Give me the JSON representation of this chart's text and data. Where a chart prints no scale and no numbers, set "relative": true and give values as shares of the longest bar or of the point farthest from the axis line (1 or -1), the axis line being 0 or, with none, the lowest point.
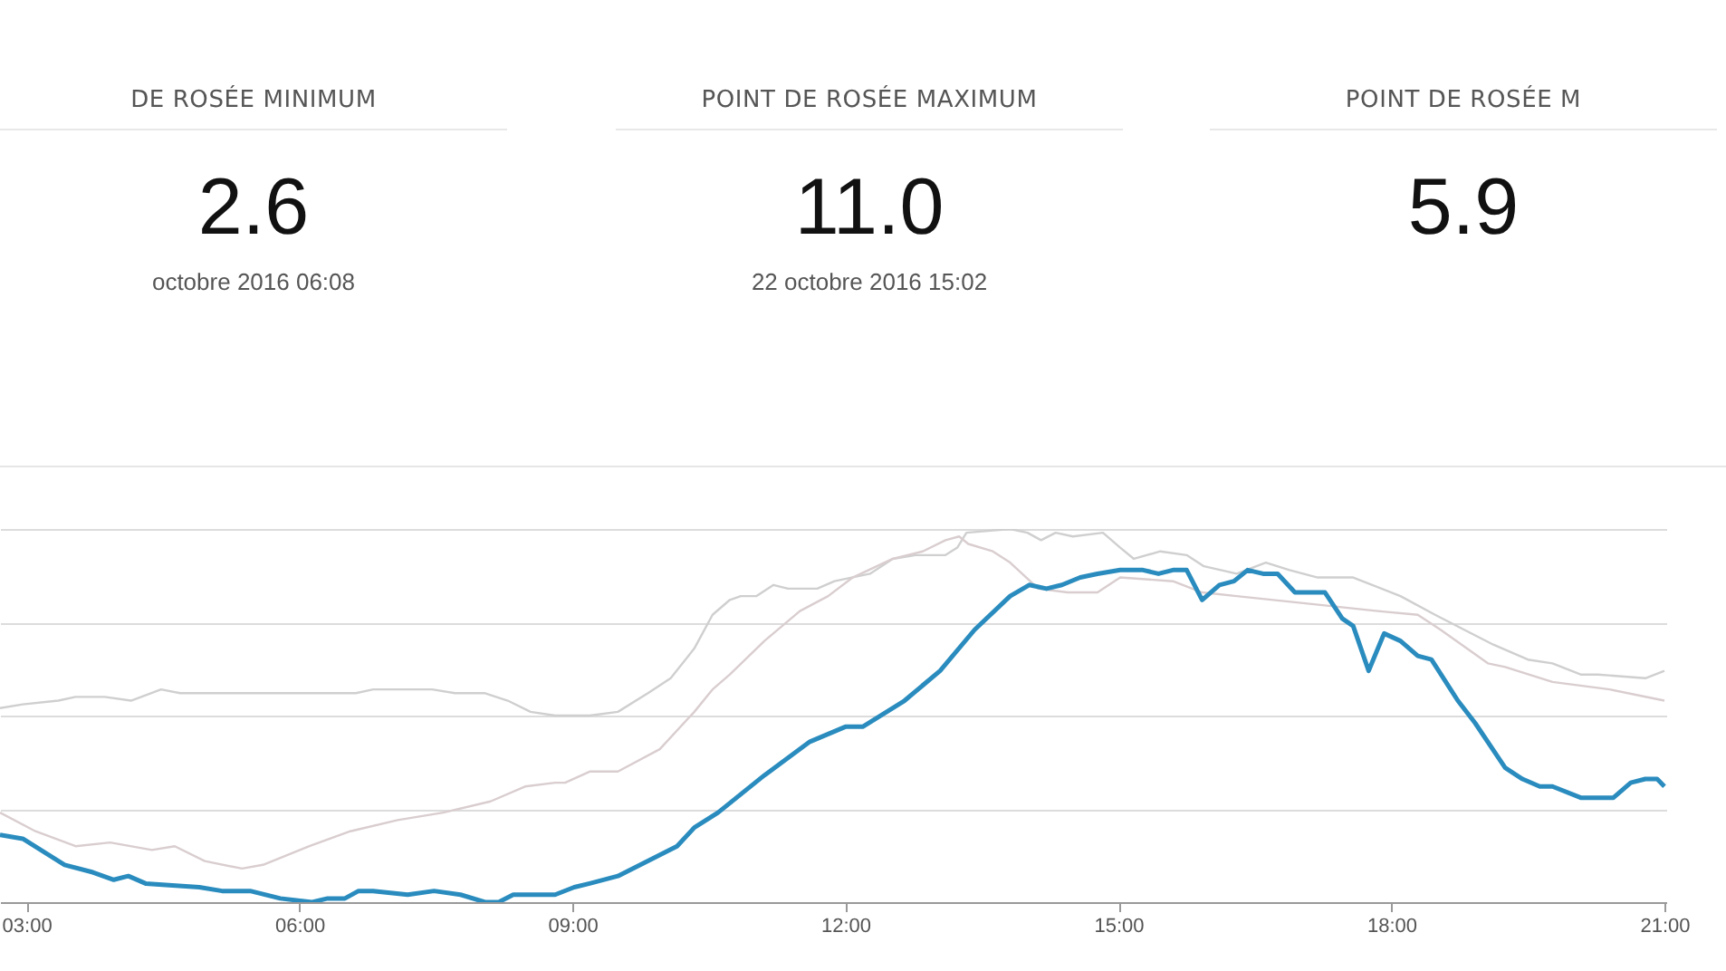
{
  "chart_data": [
    {
      "type": "other",
      "title": "DE ROSÉE MINIMUM",
      "annotations": [
        "2.6",
        "octobre 2016 06:08"
      ]
    },
    {
      "type": "other",
      "title": "POINT DE ROSÉE MAXIMUM",
      "annotations": [
        "11.0",
        "22 octobre 2016 15:02"
      ]
    },
    {
      "type": "other",
      "title": "POINT DE ROSÉE M",
      "annotations": [
        "5.9"
      ]
    },
    {
      "type": "line",
      "relative": true,
      "grid": "y",
      "line_style": "solid",
      "xlim": [
        2.71,
        21.02
      ],
      "xticks": [
        {
          "value": 3,
          "label": "03:00"
        },
        {
          "value": 6,
          "label": "06:00"
        },
        {
          "value": 9,
          "label": "09:00"
        },
        {
          "value": 12,
          "label": "12:00"
        },
        {
          "value": 15,
          "label": "15:00"
        },
        {
          "value": 18,
          "label": "18:00"
        },
        {
          "value": 21,
          "label": "21:00"
        }
      ],
      "series": [
        {
          "color": "#cfcfcf",
          "x": [
            2.71,
            2.96,
            3.35,
            3.54,
            3.86,
            4.15,
            4.48,
            4.69,
            6.62,
            6.81,
            7.46,
            7.71,
            8.04,
            8.29,
            8.54,
            8.81,
            9.19,
            9.5,
            9.83,
            10.08,
            10.34,
            10.54,
            10.73,
            10.85,
            11.02,
            11.21,
            11.37,
            11.69,
            11.88,
            12.27,
            12.52,
            12.77,
            13.1,
            13.23,
            13.33,
            13.81,
            14.0,
            14.15,
            14.31,
            14.5,
            14.83,
            15.02,
            15.17,
            15.46,
            15.75,
            15.94,
            16.3,
            16.62,
            16.88,
            17.19,
            17.58,
            18.1,
            18.48,
            19.12,
            19.5,
            19.77,
            20.08,
            20.27,
            20.79,
            21.0
          ],
          "values": [
            0.52,
            0.53,
            0.54,
            0.55,
            0.55,
            0.54,
            0.57,
            0.56,
            0.56,
            0.57,
            0.57,
            0.56,
            0.56,
            0.54,
            0.51,
            0.5,
            0.5,
            0.51,
            0.56,
            0.6,
            0.68,
            0.77,
            0.81,
            0.82,
            0.82,
            0.85,
            0.84,
            0.84,
            0.86,
            0.88,
            0.92,
            0.93,
            0.93,
            0.95,
            0.99,
            1.0,
            0.99,
            0.97,
            0.99,
            0.98,
            0.99,
            0.95,
            0.92,
            0.94,
            0.93,
            0.9,
            0.88,
            0.91,
            0.89,
            0.87,
            0.87,
            0.82,
            0.77,
            0.69,
            0.65,
            0.64,
            0.61,
            0.61,
            0.6,
            0.62
          ]
        },
        {
          "color": "#d9cdcf",
          "x": [
            2.71,
            3.1,
            3.54,
            3.92,
            4.38,
            4.63,
            4.96,
            5.37,
            5.6,
            6.11,
            6.56,
            7.08,
            7.58,
            8.1,
            8.48,
            8.81,
            8.92,
            9.19,
            9.5,
            9.96,
            10.34,
            10.54,
            10.73,
            11.11,
            11.5,
            11.81,
            12.08,
            12.52,
            12.85,
            13.1,
            13.25,
            13.35,
            13.62,
            13.81,
            14.12,
            14.44,
            14.77,
            15.02,
            15.6,
            15.92,
            16.3,
            17.08,
            17.85,
            18.29,
            18.54,
            19.06,
            19.25,
            19.77,
            20.4,
            21.0
          ],
          "values": [
            0.24,
            0.19,
            0.15,
            0.16,
            0.14,
            0.15,
            0.11,
            0.09,
            0.1,
            0.15,
            0.19,
            0.22,
            0.24,
            0.27,
            0.31,
            0.32,
            0.32,
            0.35,
            0.35,
            0.41,
            0.51,
            0.57,
            0.61,
            0.7,
            0.78,
            0.82,
            0.87,
            0.92,
            0.94,
            0.97,
            0.98,
            0.96,
            0.94,
            0.91,
            0.84,
            0.83,
            0.83,
            0.87,
            0.86,
            0.83,
            0.82,
            0.8,
            0.78,
            0.77,
            0.73,
            0.64,
            0.63,
            0.59,
            0.57,
            0.54
          ]
        },
        {
          "color": "#2a8cbe",
          "x": [
            2.71,
            2.96,
            3.42,
            3.73,
            3.96,
            4.12,
            4.31,
            4.9,
            5.15,
            5.46,
            5.79,
            6.14,
            6.31,
            6.5,
            6.65,
            6.81,
            7.19,
            7.48,
            7.77,
            8.04,
            8.19,
            8.35,
            8.81,
            9.02,
            9.19,
            9.5,
            10.15,
            10.34,
            10.6,
            11.11,
            11.61,
            12.0,
            12.19,
            12.65,
            13.04,
            13.42,
            13.81,
            14.02,
            14.21,
            14.38,
            14.58,
            14.77,
            15.02,
            15.27,
            15.44,
            15.6,
            15.75,
            15.92,
            16.11,
            16.27,
            16.42,
            16.59,
            16.75,
            16.94,
            17.09,
            17.27,
            17.46,
            17.58,
            17.75,
            17.92,
            18.1,
            18.29,
            18.44,
            18.73,
            18.92,
            19.25,
            19.44,
            19.63,
            19.77,
            20.08,
            20.44,
            20.63,
            20.79,
            20.92,
            21.0
          ],
          "values": [
            0.18,
            0.17,
            0.1,
            0.08,
            0.06,
            0.07,
            0.05,
            0.04,
            0.03,
            0.03,
            0.01,
            0.0,
            0.01,
            0.01,
            0.03,
            0.03,
            0.02,
            0.03,
            0.02,
            0.0,
            0.0,
            0.02,
            0.02,
            0.04,
            0.05,
            0.07,
            0.15,
            0.2,
            0.24,
            0.34,
            0.43,
            0.47,
            0.47,
            0.54,
            0.62,
            0.73,
            0.82,
            0.85,
            0.84,
            0.85,
            0.87,
            0.88,
            0.89,
            0.89,
            0.88,
            0.89,
            0.89,
            0.81,
            0.85,
            0.86,
            0.89,
            0.88,
            0.88,
            0.83,
            0.83,
            0.83,
            0.76,
            0.74,
            0.62,
            0.72,
            0.7,
            0.66,
            0.65,
            0.54,
            0.48,
            0.36,
            0.33,
            0.31,
            0.31,
            0.28,
            0.28,
            0.32,
            0.33,
            0.33,
            0.31
          ]
        }
      ]
    }
  ]
}
